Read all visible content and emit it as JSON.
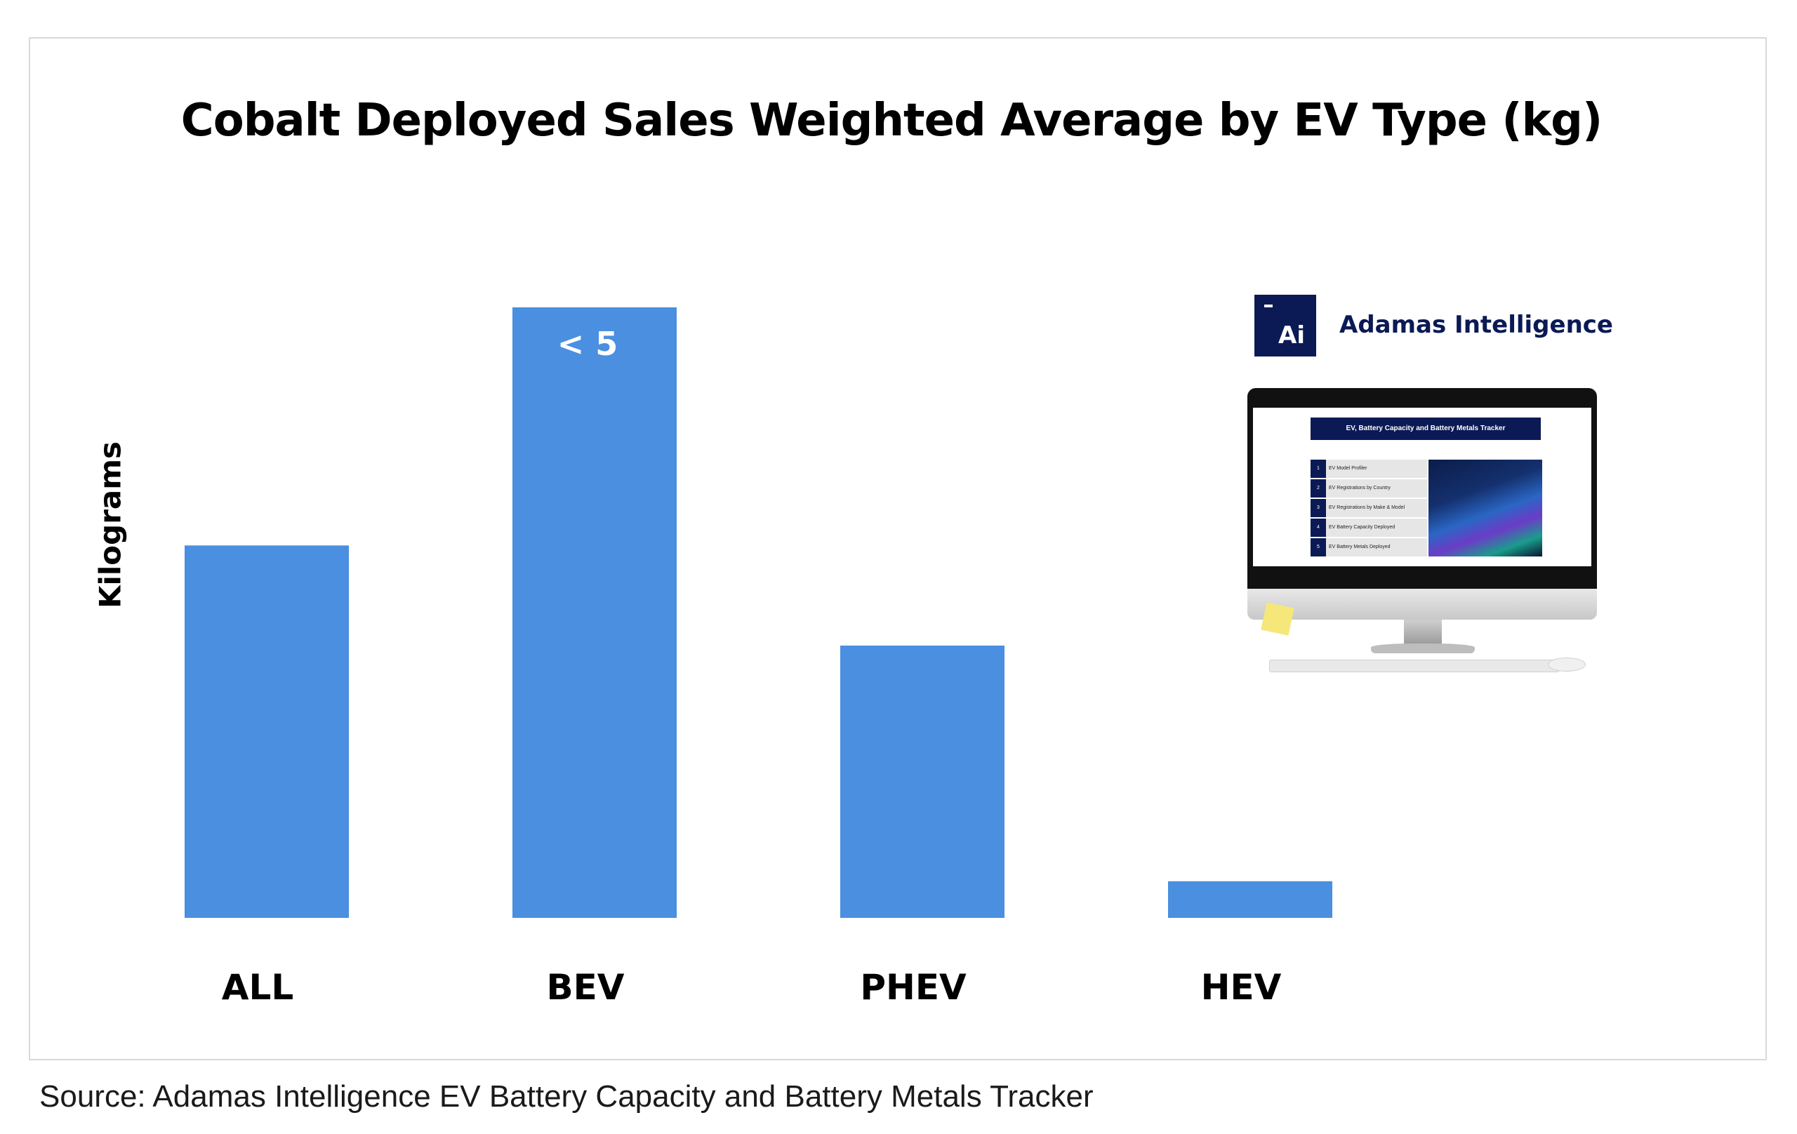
{
  "chart_data": {
    "type": "bar",
    "title": "Cobalt Deployed Sales Weighted Average by EV Type (kg)",
    "xlabel": "",
    "ylabel": "Kilograms",
    "categories": [
      "ALL",
      "BEV",
      "PHEV",
      "HEV"
    ],
    "values": [
      3.05,
      5.0,
      2.23,
      0.3
    ],
    "ylim": [
      0,
      5.0
    ],
    "bar_color": "#4a8fe0",
    "data_labels": [
      "",
      "< 5",
      "",
      ""
    ],
    "grid": false,
    "legend": "none"
  },
  "source": "Source: Adamas Intelligence EV Battery Capacity and Battery Metals Tracker",
  "brand": {
    "logo_text": "Ai",
    "name": "Adamas Intelligence",
    "color": "#0b1a55"
  },
  "screen": {
    "title": "EV, Battery Capacity and Battery Metals Tracker",
    "menu": [
      {
        "num": "1",
        "label": "EV Model Profiler"
      },
      {
        "num": "2",
        "label": "EV Registrations by Country"
      },
      {
        "num": "3",
        "label": "EV Registrations by Make & Model"
      },
      {
        "num": "4",
        "label": "EV Battery Capacity Deployed"
      },
      {
        "num": "5",
        "label": "EV Battery Metals Deployed"
      }
    ]
  }
}
